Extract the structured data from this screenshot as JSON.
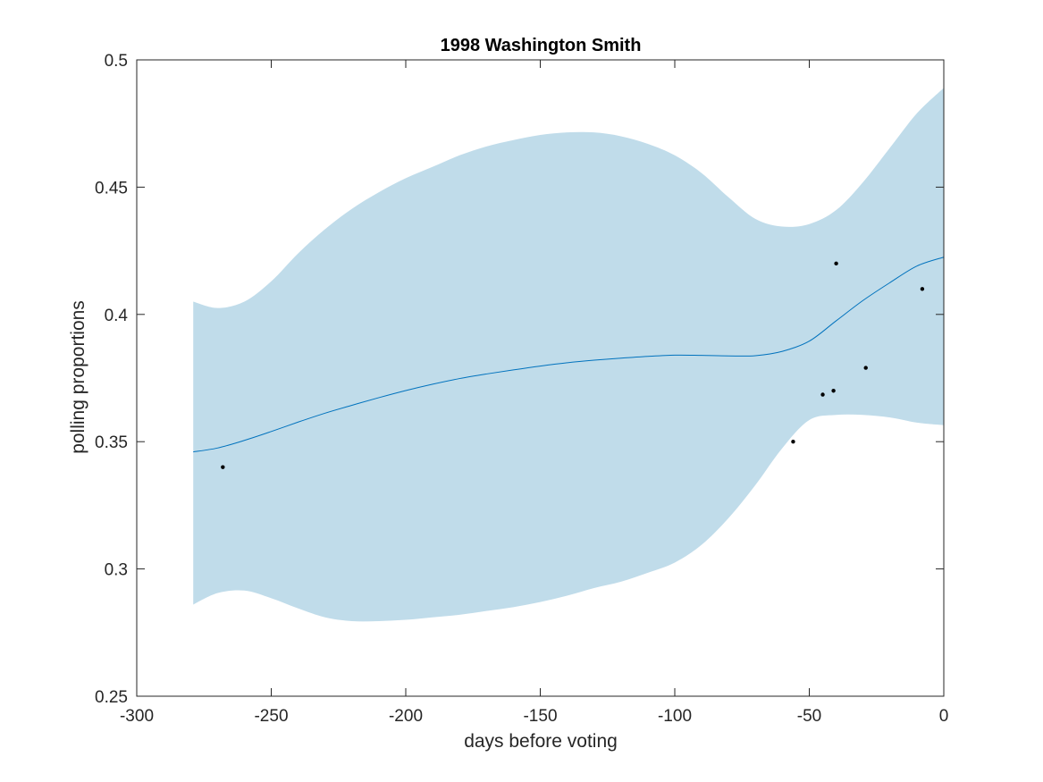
{
  "chart_data": {
    "type": "line",
    "title": "1998 Washington Smith",
    "xlabel": "days before voting",
    "ylabel": "polling proportions",
    "xlim": [
      -300,
      0
    ],
    "ylim": [
      0.25,
      0.5
    ],
    "xticks": [
      -300,
      -250,
      -200,
      -150,
      -100,
      -50,
      0
    ],
    "yticks": [
      0.25,
      0.3,
      0.35,
      0.4,
      0.45,
      0.5
    ],
    "xtick_labels": [
      "-300",
      "-250",
      "-200",
      "-150",
      "-100",
      "-50",
      "0"
    ],
    "ytick_labels": [
      "0.25",
      "0.3",
      "0.35",
      "0.4",
      "0.45",
      "0.5"
    ],
    "grid": false,
    "colors": {
      "band": "#c0dcea",
      "line": "#0072bd",
      "points": "#000000",
      "axis": "#262626"
    },
    "series": [
      {
        "type": "line",
        "x": [
          -279,
          -270,
          -260,
          -250,
          -240,
          -230,
          -220,
          -210,
          -200,
          -190,
          -180,
          -170,
          -160,
          -150,
          -140,
          -130,
          -120,
          -110,
          -100,
          -90,
          -80,
          -70,
          -60,
          -50,
          -40,
          -30,
          -20,
          -10,
          0
        ],
        "y": [
          0.346,
          0.3475,
          0.3505,
          0.354,
          0.3577,
          0.3612,
          0.3643,
          0.3673,
          0.3701,
          0.3726,
          0.3748,
          0.3766,
          0.3782,
          0.3797,
          0.381,
          0.382,
          0.3828,
          0.3835,
          0.384,
          0.3839,
          0.3837,
          0.3838,
          0.3855,
          0.3895,
          0.3975,
          0.4055,
          0.4125,
          0.419,
          0.4225
        ]
      },
      {
        "type": "band",
        "x": [
          -279,
          -270,
          -260,
          -250,
          -240,
          -230,
          -220,
          -210,
          -200,
          -190,
          -180,
          -170,
          -160,
          -150,
          -140,
          -130,
          -120,
          -110,
          -100,
          -90,
          -80,
          -70,
          -60,
          -50,
          -40,
          -30,
          -20,
          -10,
          0
        ],
        "upper": [
          0.405,
          0.4025,
          0.405,
          0.413,
          0.424,
          0.4335,
          0.4415,
          0.448,
          0.4535,
          0.458,
          0.4625,
          0.466,
          0.4685,
          0.4705,
          0.4715,
          0.4715,
          0.47,
          0.467,
          0.4625,
          0.4555,
          0.446,
          0.4375,
          0.4345,
          0.4355,
          0.441,
          0.452,
          0.4655,
          0.479,
          0.489
        ],
        "lower": [
          0.286,
          0.2905,
          0.2915,
          0.2885,
          0.2845,
          0.281,
          0.2795,
          0.2795,
          0.28,
          0.281,
          0.282,
          0.2835,
          0.285,
          0.287,
          0.2895,
          0.2925,
          0.295,
          0.2985,
          0.3025,
          0.3095,
          0.32,
          0.333,
          0.3475,
          0.3585,
          0.3605,
          0.3605,
          0.3595,
          0.3575,
          0.3565
        ]
      },
      {
        "type": "scatter",
        "x": [
          -268,
          -56,
          -45,
          -41,
          -40,
          -29,
          -8
        ],
        "y": [
          0.34,
          0.35,
          0.3685,
          0.37,
          0.42,
          0.379,
          0.41
        ]
      }
    ]
  }
}
